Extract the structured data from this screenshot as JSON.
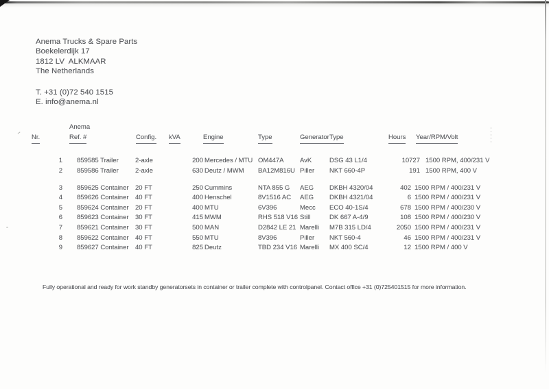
{
  "letterhead": {
    "company": "Anema Trucks & Spare Parts",
    "street": "Boekelerdijk 17",
    "city": "1812 LV  ALKMAAR",
    "country": "The Netherlands",
    "phone": "T. +31 (0)72 540 1515",
    "email": "E. info@anema.nl"
  },
  "table": {
    "headers": {
      "nr": "Nr.",
      "ref_top": "Anema",
      "ref": "Ref. #",
      "config": "Config.",
      "kva": "kVA",
      "engine": "Engine",
      "engine_type": "Type",
      "generator": "Generator",
      "generator_type": "Type",
      "hours": "Hours",
      "year_rpm_volt": "Year/RPM/Volt"
    },
    "rows": [
      {
        "group": 1,
        "nr": "1",
        "ref": "859585 Trailer",
        "config": "2-axle",
        "kva": "200",
        "engine": "Mercedes / MTU",
        "engine_type": "OM447A",
        "generator": "AvK",
        "generator_type": "DSG 43 L1/4",
        "hours": "10727",
        "year_rpm_volt": "1500 RPM, 400/231 V"
      },
      {
        "group": 1,
        "nr": "2",
        "ref": "859586 Trailer",
        "config": "2-axle",
        "kva": "630",
        "engine": "Deutz / MWM",
        "engine_type": "BA12M816U",
        "generator": "Piller",
        "generator_type": "NKT 660-4P",
        "hours": "191",
        "year_rpm_volt": "1500 RPM, 400 V"
      },
      {
        "group": 2,
        "nr": "3",
        "ref": "859625 Container",
        "config": "20 FT",
        "kva": "250",
        "engine": "Cummins",
        "engine_type": "NTA 855 G",
        "generator": "AEG",
        "generator_type": "DKBH 4320/04",
        "hours": "402",
        "year_rpm_volt": "1500 RPM / 400/231 V"
      },
      {
        "group": 2,
        "nr": "4",
        "ref": "859626 Container",
        "config": "40 FT",
        "kva": "400",
        "engine": "Henschel",
        "engine_type": "8V1516 AC",
        "generator": "AEG",
        "generator_type": "DKBH 4321/04",
        "hours": "6",
        "year_rpm_volt": "1500 RPM / 400/231 V"
      },
      {
        "group": 2,
        "nr": "5",
        "ref": "859624 Container",
        "config": "20 FT",
        "kva": "400",
        "engine": "MTU",
        "engine_type": "6V396",
        "generator": "Mecc",
        "generator_type": "ECO 40-1S/4",
        "hours": "678",
        "year_rpm_volt": "1500 RPM / 400/230 V"
      },
      {
        "group": 2,
        "nr": "6",
        "ref": "859623 Container",
        "config": "30 FT",
        "kva": "415",
        "engine": "MWM",
        "engine_type": "RHS 518 V16",
        "generator": "Still",
        "generator_type": "DK 667 A-4/9",
        "hours": "108",
        "year_rpm_volt": "1500 RPM / 400/230 V"
      },
      {
        "group": 2,
        "nr": "7",
        "ref": "859621 Container",
        "config": "30 FT",
        "kva": "500",
        "engine": "MAN",
        "engine_type": "D2842 LE 21",
        "generator": "Marelli",
        "generator_type": "M7B 315 LD/4",
        "hours": "2050",
        "year_rpm_volt": "1500 RPM / 400/231 V"
      },
      {
        "group": 2,
        "nr": "8",
        "ref": "859622 Container",
        "config": "40 FT",
        "kva": "550",
        "engine": "MTU",
        "engine_type": "8V396",
        "generator": "Piller",
        "generator_type": "NKT 560-4",
        "hours": "46",
        "year_rpm_volt": "1500 RPM / 400/231 V"
      },
      {
        "group": 2,
        "nr": "9",
        "ref": "859627 Container",
        "config": "40 FT",
        "kva": "825",
        "engine": "Deutz",
        "engine_type": "TBD 234 V16",
        "generator": "Marelli",
        "generator_type": "MX 400 SC/4",
        "hours": "12",
        "year_rpm_volt": "1500 RPM / 400 V"
      }
    ]
  },
  "footer": {
    "note": "Fully operational and ready for work standby generatorsets in container or trailer complete with controlpanel. Contact office +31 (0)725401515 for more information."
  }
}
